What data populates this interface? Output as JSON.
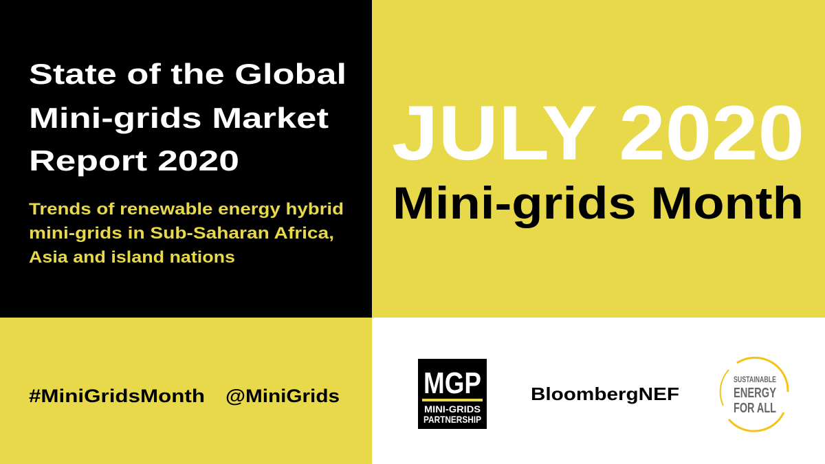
{
  "report": {
    "title_lines": [
      "State of the Global",
      "Mini-grids Market",
      "Report 2020"
    ],
    "subtitle_lines": [
      "Trends of renewable energy hybrid",
      "mini-grids in Sub-Saharan Africa,",
      "Asia and island nations"
    ]
  },
  "event": {
    "date": "JULY 2020",
    "name": "Mini-grids Month"
  },
  "social": {
    "hashtag": "#MiniGridsMonth",
    "handle": "@MiniGrids"
  },
  "logos": {
    "mgp": {
      "mark": "MGP",
      "lines": [
        "MINI-GRIDS",
        "PARTNERSHIP"
      ]
    },
    "bnef": "BloombergNEF",
    "seforall": [
      "SUSTAINABLE",
      "ENERGY",
      "FOR ALL"
    ]
  }
}
